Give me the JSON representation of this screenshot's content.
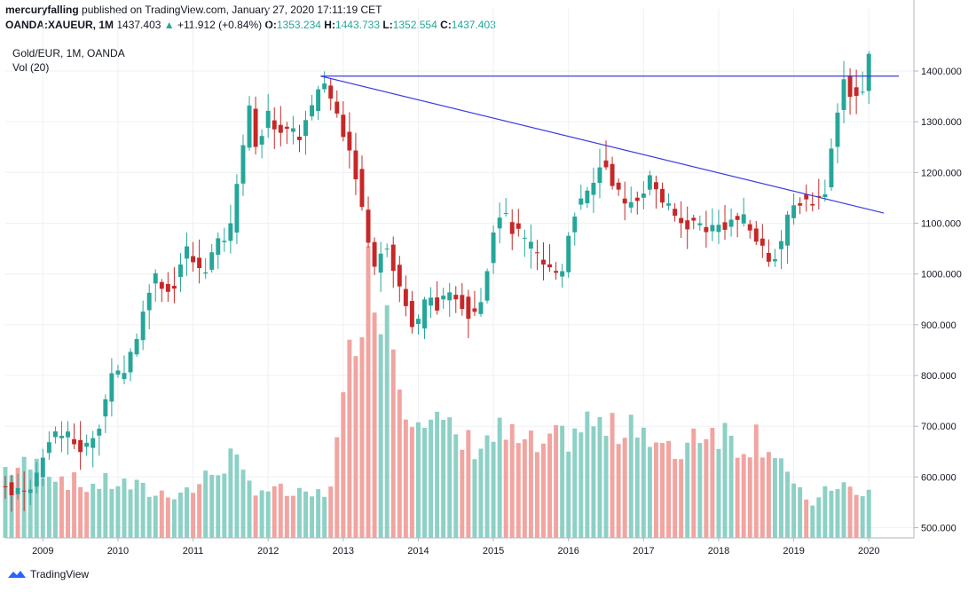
{
  "header": {
    "user": "mercuryfalling",
    "published": " published on TradingView.com, January 27, 2020 17:11:19 CET",
    "symbol": "OANDA:XAUEUR, 1M",
    "last": "1437.403",
    "change_arrow": "▲",
    "change": "+11.912 (+0.84%)",
    "o_label": "O:",
    "o_val": "1353.234",
    "h_label": "H:",
    "h_val": "1443.733",
    "l_label": "L:",
    "l_val": "1352.554",
    "c_label": "C:",
    "c_val": "1437.403"
  },
  "legend": {
    "series": "Gold/EUR, 1M, OANDA",
    "volume": "Vol (20)"
  },
  "brand": {
    "name": "TradingView"
  },
  "colors": {
    "up": "#26a69a",
    "down": "#c62828",
    "vol_up": "#8dd0c6",
    "vol_down": "#f1a4a0",
    "trend": "#3b3be8",
    "grid": "#eef0f3"
  },
  "chart_data": {
    "type": "candlestick",
    "title": "Gold/EUR, 1M, OANDA",
    "price_axis": {
      "ticks": [
        "500.000",
        "600.000",
        "700.000",
        "800.000",
        "900.000",
        "1000.000",
        "1100.000",
        "1200.000",
        "1300.000",
        "1400.000"
      ],
      "ylim": [
        480,
        1470
      ]
    },
    "time_axis": {
      "ticks": [
        "2009",
        "2010",
        "2011",
        "2012",
        "2013",
        "2014",
        "2015",
        "2016",
        "2017",
        "2018",
        "2019",
        "2020"
      ],
      "start_year": 2008.5,
      "end_year": 2020.6
    },
    "resistance_line": {
      "from": [
        2012.7,
        1390
      ],
      "to": [
        2020.4,
        1390
      ]
    },
    "trend_line": {
      "from": [
        2012.7,
        1390
      ],
      "to": [
        2020.2,
        1120
      ]
    },
    "anchors": [
      [
        2008.5,
        580
      ],
      [
        2008.75,
        570
      ],
      [
        2008.95,
        610
      ],
      [
        2009.1,
        690
      ],
      [
        2009.3,
        680
      ],
      [
        2009.55,
        650
      ],
      [
        2009.75,
        710
      ],
      [
        2009.9,
        790
      ],
      [
        2010.1,
        820
      ],
      [
        2010.3,
        900
      ],
      [
        2010.45,
        1000
      ],
      [
        2010.55,
        990
      ],
      [
        2010.7,
        960
      ],
      [
        2010.9,
        1050
      ],
      [
        2011.1,
        1000
      ],
      [
        2011.3,
        1050
      ],
      [
        2011.5,
        1090
      ],
      [
        2011.6,
        1210
      ],
      [
        2011.75,
        1320
      ],
      [
        2011.85,
        1250
      ],
      [
        2012.0,
        1310
      ],
      [
        2012.2,
        1280
      ],
      [
        2012.4,
        1270
      ],
      [
        2012.6,
        1330
      ],
      [
        2012.75,
        1380
      ],
      [
        2012.9,
        1320
      ],
      [
        2013.1,
        1250
      ],
      [
        2013.25,
        1130
      ],
      [
        2013.4,
        1000
      ],
      [
        2013.55,
        1080
      ],
      [
        2013.7,
        1000
      ],
      [
        2013.85,
        930
      ],
      [
        2013.95,
        880
      ],
      [
        2014.1,
        950
      ],
      [
        2014.3,
        940
      ],
      [
        2014.5,
        960
      ],
      [
        2014.7,
        920
      ],
      [
        2014.85,
        960
      ],
      [
        2014.95,
        1050
      ],
      [
        2015.05,
        1130
      ],
      [
        2015.3,
        1080
      ],
      [
        2015.5,
        1050
      ],
      [
        2015.7,
        1010
      ],
      [
        2015.9,
        1000
      ],
      [
        2016.05,
        1120
      ],
      [
        2016.3,
        1160
      ],
      [
        2016.45,
        1230
      ],
      [
        2016.6,
        1180
      ],
      [
        2016.75,
        1130
      ],
      [
        2016.95,
        1160
      ],
      [
        2017.1,
        1190
      ],
      [
        2017.3,
        1130
      ],
      [
        2017.5,
        1100
      ],
      [
        2017.7,
        1100
      ],
      [
        2017.9,
        1090
      ],
      [
        2018.1,
        1100
      ],
      [
        2018.3,
        1110
      ],
      [
        2018.5,
        1070
      ],
      [
        2018.65,
        1030
      ],
      [
        2018.8,
        1050
      ],
      [
        2018.95,
        1120
      ],
      [
        2019.1,
        1150
      ],
      [
        2019.3,
        1140
      ],
      [
        2019.45,
        1180
      ],
      [
        2019.55,
        1300
      ],
      [
        2019.65,
        1390
      ],
      [
        2019.75,
        1360
      ],
      [
        2019.85,
        1350
      ],
      [
        2019.95,
        1350
      ],
      [
        2020.0,
        1435
      ]
    ],
    "volume_anchors": [
      [
        2008.5,
        60
      ],
      [
        2009.0,
        62
      ],
      [
        2009.5,
        45
      ],
      [
        2010.0,
        48
      ],
      [
        2010.5,
        38
      ],
      [
        2011.0,
        42
      ],
      [
        2011.5,
        70
      ],
      [
        2011.7,
        48
      ],
      [
        2012.0,
        42
      ],
      [
        2012.5,
        35
      ],
      [
        2012.8,
        40
      ],
      [
        2013.0,
        110
      ],
      [
        2013.2,
        210
      ],
      [
        2013.4,
        230
      ],
      [
        2013.6,
        200
      ],
      [
        2013.8,
        120
      ],
      [
        2014.0,
        120
      ],
      [
        2014.3,
        95
      ],
      [
        2014.6,
        80
      ],
      [
        2014.9,
        85
      ],
      [
        2015.1,
        90
      ],
      [
        2015.4,
        80
      ],
      [
        2015.7,
        75
      ],
      [
        2016.0,
        90
      ],
      [
        2016.3,
        100
      ],
      [
        2016.6,
        90
      ],
      [
        2016.9,
        110
      ],
      [
        2017.1,
        80
      ],
      [
        2017.4,
        70
      ],
      [
        2017.7,
        95
      ],
      [
        2018.0,
        95
      ],
      [
        2018.3,
        80
      ],
      [
        2018.5,
        90
      ],
      [
        2018.8,
        75
      ],
      [
        2019.0,
        40
      ],
      [
        2019.3,
        30
      ],
      [
        2019.6,
        50
      ],
      [
        2019.9,
        32
      ],
      [
        2020.0,
        40
      ]
    ]
  }
}
